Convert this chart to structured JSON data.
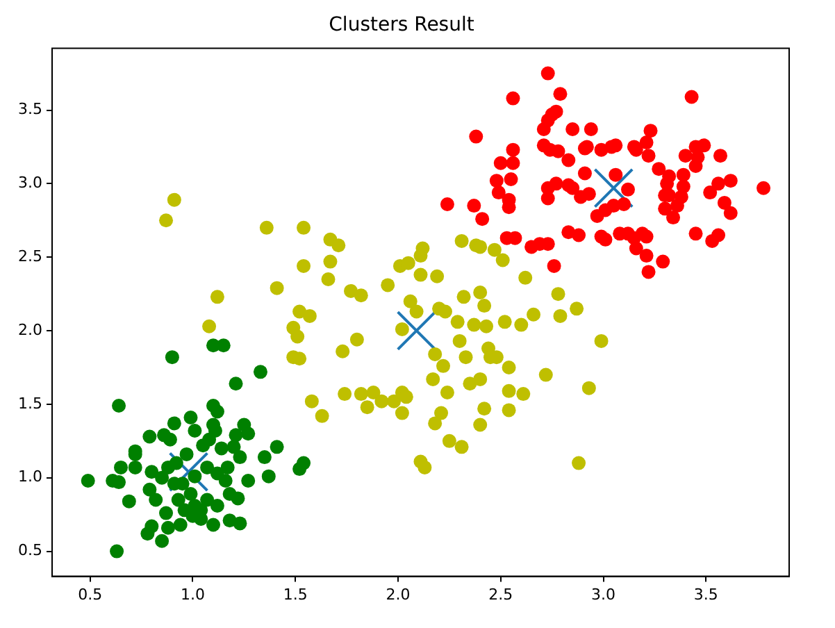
{
  "chart_data": {
    "type": "scatter",
    "title": "Clusters Result",
    "marker": "circle",
    "grid": false,
    "legend": false,
    "xlim": [
      0.315,
      3.905
    ],
    "ylim": [
      0.33,
      3.92
    ],
    "xticks": [
      0.5,
      {
        "value": 1,
        "label": "1.0"
      },
      1.5,
      {
        "value": 2,
        "label": "2.0"
      },
      2.5,
      {
        "value": 3,
        "label": "3.0"
      },
      3.5
    ],
    "yticks": [
      0.5,
      {
        "value": 1,
        "label": "1.0"
      },
      1.5,
      {
        "value": 2,
        "label": "2.0"
      },
      2.5,
      {
        "value": 3,
        "label": "3.0"
      },
      3.5
    ],
    "series": [
      {
        "color": "#008000",
        "x": [
          0.49,
          0.64,
          0.63,
          0.9,
          1.1,
          1.15,
          1.21,
          1.33,
          0.61,
          0.64,
          0.65,
          0.69,
          0.72,
          0.72,
          0.72,
          0.79,
          0.8,
          0.79,
          0.8,
          0.78,
          0.85,
          0.86,
          0.89,
          0.91,
          0.99,
          1.01,
          1.1,
          1.12,
          1.1,
          1.11,
          1.05,
          1.08,
          0.97,
          1.25,
          1.27,
          1.21,
          1.2,
          1.14,
          1.23,
          1.35,
          1.41,
          1.37,
          1.54,
          1.52,
          1.27,
          1.22,
          1.18,
          1.18,
          1.23,
          1.1,
          1.04,
          0.94,
          0.88,
          0.87,
          0.82,
          0.85,
          0.88,
          0.92,
          0.95,
          0.99,
          1.01,
          0.96,
          1.0,
          1.04,
          1.07,
          1.12,
          1.16,
          1.17,
          1.12,
          1.07,
          1.01,
          0.93,
          0.91
        ],
        "values": [
          0.98,
          1.49,
          0.5,
          1.82,
          1.9,
          1.9,
          1.64,
          1.72,
          0.98,
          0.97,
          1.07,
          0.84,
          1.07,
          1.18,
          1.16,
          1.28,
          1.04,
          0.92,
          0.67,
          0.62,
          0.57,
          1.29,
          1.26,
          1.37,
          1.41,
          1.32,
          1.49,
          1.45,
          1.36,
          1.32,
          1.22,
          1.26,
          1.16,
          1.36,
          1.3,
          1.29,
          1.21,
          1.2,
          1.14,
          1.14,
          1.21,
          1.01,
          1.1,
          1.06,
          0.98,
          0.86,
          0.89,
          0.71,
          0.69,
          0.68,
          0.72,
          0.68,
          0.66,
          0.76,
          0.85,
          1.0,
          1.07,
          1.1,
          0.96,
          0.89,
          0.81,
          0.78,
          0.74,
          0.78,
          0.85,
          0.81,
          0.98,
          1.07,
          1.03,
          1.07,
          1.01,
          0.85,
          0.96
        ]
      },
      {
        "color": "#bfbf00",
        "x": [
          0.87,
          0.91,
          1.08,
          1.12,
          1.36,
          1.54,
          1.41,
          1.54,
          1.67,
          1.71,
          1.67,
          1.66,
          1.52,
          1.57,
          1.49,
          1.51,
          1.49,
          1.52,
          1.58,
          1.63,
          1.73,
          1.8,
          1.77,
          1.82,
          1.74,
          1.82,
          1.88,
          1.85,
          1.92,
          1.98,
          2.02,
          2.02,
          2.04,
          1.95,
          2.01,
          2.05,
          2.11,
          2.12,
          2.11,
          2.19,
          2.06,
          2.09,
          2.02,
          2.2,
          2.23,
          2.18,
          2.22,
          2.17,
          2.24,
          2.21,
          2.18,
          2.25,
          2.31,
          2.11,
          2.13,
          2.29,
          2.3,
          2.32,
          2.31,
          2.38,
          2.4,
          2.4,
          2.42,
          2.37,
          2.43,
          2.33,
          2.35,
          2.4,
          2.44,
          2.48,
          2.45,
          2.42,
          2.4,
          2.47,
          2.51,
          2.52,
          2.6,
          2.54,
          2.54,
          2.54,
          2.61,
          2.62,
          2.66,
          2.72,
          2.78,
          2.79,
          2.87,
          2.93,
          2.99,
          2.88
        ],
        "values": [
          2.75,
          2.89,
          2.03,
          2.23,
          2.7,
          2.7,
          2.29,
          2.44,
          2.62,
          2.58,
          2.47,
          2.35,
          2.13,
          2.1,
          2.02,
          1.96,
          1.82,
          1.81,
          1.52,
          1.42,
          1.86,
          1.94,
          2.27,
          2.24,
          1.57,
          1.57,
          1.58,
          1.48,
          1.52,
          1.52,
          1.44,
          1.58,
          1.55,
          2.31,
          2.44,
          2.46,
          2.51,
          2.56,
          2.38,
          2.37,
          2.2,
          2.13,
          2.01,
          2.15,
          2.13,
          1.84,
          1.76,
          1.67,
          1.58,
          1.44,
          1.37,
          1.25,
          1.21,
          1.11,
          1.07,
          2.06,
          1.93,
          2.23,
          2.61,
          2.58,
          2.57,
          2.26,
          2.17,
          2.04,
          2.03,
          1.82,
          1.64,
          1.67,
          1.88,
          1.82,
          1.82,
          1.47,
          1.36,
          2.55,
          2.48,
          2.06,
          2.04,
          1.75,
          1.59,
          1.46,
          1.57,
          2.36,
          2.11,
          1.7,
          2.25,
          2.1,
          2.15,
          1.61,
          1.93,
          1.1
        ]
      },
      {
        "color": "#ff0000",
        "x": [
          2.73,
          2.79,
          2.56,
          3.43,
          2.38,
          2.71,
          2.73,
          2.75,
          2.77,
          2.85,
          2.94,
          2.71,
          2.74,
          2.78,
          2.83,
          2.91,
          2.92,
          2.99,
          3.04,
          3.06,
          3.15,
          3.16,
          3.23,
          3.21,
          3.22,
          2.5,
          2.56,
          2.56,
          2.48,
          2.55,
          2.49,
          2.54,
          2.54,
          2.24,
          2.37,
          2.41,
          2.53,
          2.57,
          2.65,
          2.69,
          2.73,
          2.76,
          2.73,
          2.77,
          2.73,
          2.83,
          2.85,
          2.83,
          2.88,
          2.91,
          2.89,
          2.93,
          2.97,
          3.01,
          3.05,
          3.1,
          2.99,
          3.01,
          3.12,
          3.08,
          3.12,
          3.15,
          3.19,
          3.21,
          3.16,
          3.21,
          3.22,
          3.29,
          3.27,
          3.32,
          3.31,
          3.3,
          3.32,
          3.3,
          3.34,
          3.36,
          3.38,
          3.39,
          3.39,
          3.4,
          3.45,
          3.49,
          3.46,
          3.45,
          3.57,
          3.56,
          3.62,
          3.52,
          3.59,
          3.62,
          3.78,
          3.45,
          3.53,
          3.56,
          3.06
        ],
        "values": [
          3.75,
          3.61,
          3.58,
          3.59,
          3.32,
          3.37,
          3.43,
          3.47,
          3.49,
          3.37,
          3.37,
          3.26,
          3.23,
          3.22,
          3.16,
          3.24,
          3.25,
          3.23,
          3.25,
          3.26,
          3.25,
          3.23,
          3.36,
          3.28,
          3.19,
          3.14,
          3.14,
          3.23,
          3.02,
          3.03,
          2.94,
          2.89,
          2.84,
          2.86,
          2.85,
          2.76,
          2.63,
          2.63,
          2.57,
          2.59,
          2.59,
          2.44,
          2.97,
          3.0,
          2.9,
          2.99,
          2.97,
          2.67,
          2.65,
          3.07,
          2.91,
          2.93,
          2.78,
          2.82,
          2.85,
          2.86,
          2.64,
          2.62,
          2.96,
          2.66,
          2.66,
          2.63,
          2.66,
          2.64,
          2.56,
          2.51,
          2.4,
          2.47,
          3.1,
          3.05,
          3.0,
          2.92,
          2.92,
          2.83,
          2.77,
          2.85,
          2.91,
          2.98,
          3.06,
          3.19,
          3.25,
          3.26,
          3.18,
          3.12,
          3.19,
          3.0,
          3.02,
          2.94,
          2.87,
          2.8,
          2.97,
          2.66,
          2.61,
          2.65,
          3.06
        ]
      },
      {
        "color": "#1f77b4",
        "marker": "cross",
        "x": [
          0.98,
          2.09,
          3.05
        ],
        "values": [
          1.04,
          2.0,
          2.97
        ]
      }
    ]
  }
}
